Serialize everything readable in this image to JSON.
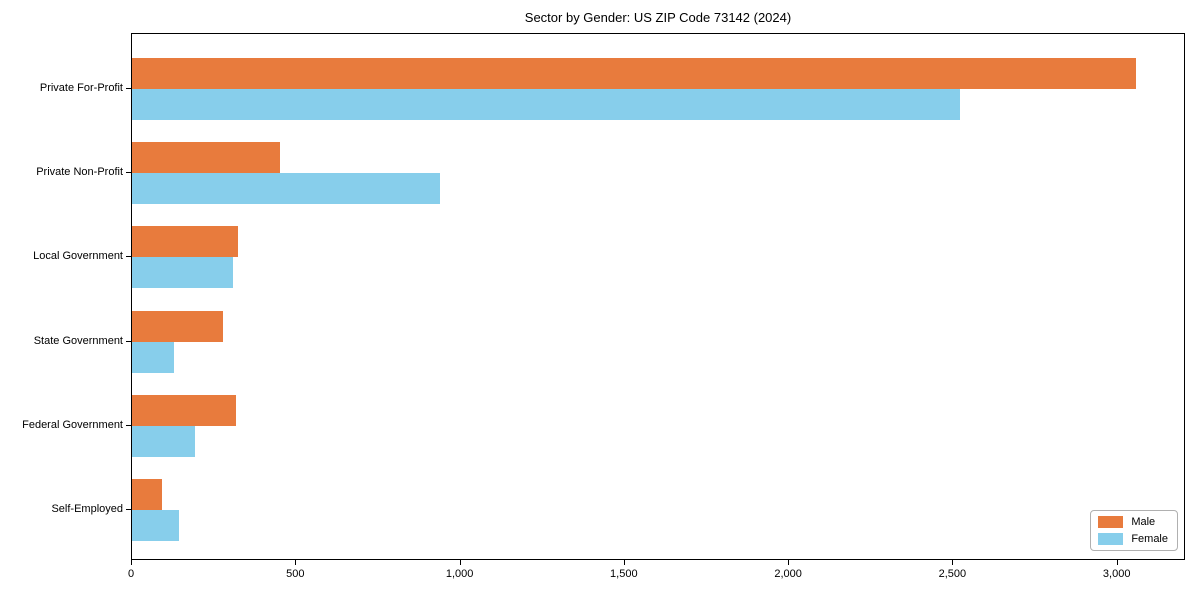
{
  "title": "Sector by Gender: US ZIP Code 73142 (2024)",
  "chart_data": {
    "type": "bar",
    "orientation": "horizontal",
    "title": "Sector by Gender: US ZIP Code 73142 (2024)",
    "xlabel": "",
    "ylabel": "",
    "categories": [
      "Private For-Profit",
      "Private Non-Profit",
      "Local Government",
      "State Government",
      "Federal Government",
      "Self-Employed"
    ],
    "series": [
      {
        "name": "Male",
        "color": "#e87b3d",
        "values": [
          3055,
          450,
          322,
          277,
          316,
          91
        ]
      },
      {
        "name": "Female",
        "color": "#87ceeb",
        "values": [
          2520,
          938,
          306,
          128,
          192,
          143
        ]
      }
    ],
    "xlim": [
      0,
      3208
    ],
    "x_ticks": [
      0,
      500,
      1000,
      1500,
      2000,
      2500,
      3000
    ],
    "x_tick_labels": [
      "0",
      "500",
      "1,000",
      "1,500",
      "2,000",
      "2,500",
      "3,000"
    ],
    "grid": false,
    "legend_position": "lower right",
    "legend_entries": [
      "Male",
      "Female"
    ]
  }
}
